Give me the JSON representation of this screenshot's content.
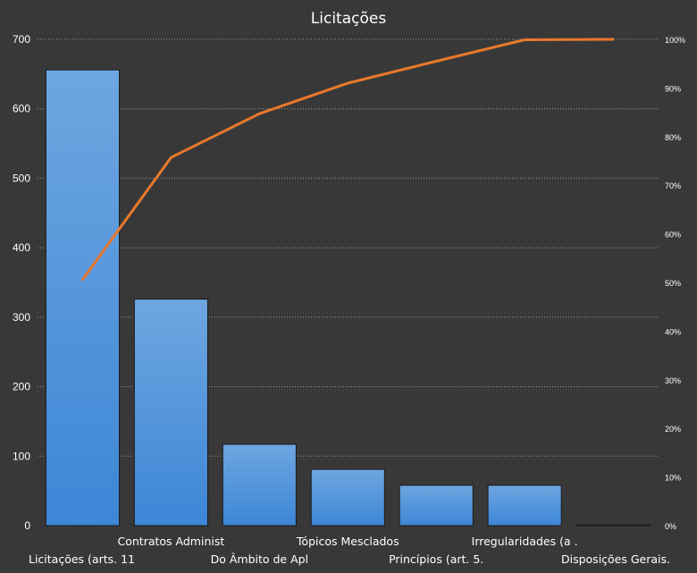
{
  "chart_data": {
    "type": "bar",
    "title": "Licitações",
    "categories": [
      "Licitações (arts. 11",
      "Contratos Administ",
      "Do Âmbito de Apl",
      "Tópicos Mesclados",
      "Princípios (art. 5.",
      "Irregularidades (a .",
      "Disposições Gerais."
    ],
    "series": [
      {
        "type": "bar",
        "values": [
          656,
          326,
          117,
          81,
          58,
          58,
          1
        ]
      },
      {
        "type": "line",
        "axis": "secondary",
        "values": [
          0.506,
          0.757,
          0.847,
          0.91,
          0.955,
          0.999,
          1.0
        ]
      }
    ],
    "ylim": [
      0,
      700
    ],
    "yticks": [
      0,
      100,
      200,
      300,
      400,
      500,
      600,
      700
    ],
    "y2lim": [
      0,
      1
    ],
    "y2ticks": [
      "0%",
      "10%",
      "20%",
      "30%",
      "40%",
      "50%",
      "60%",
      "70%",
      "80%",
      "90%",
      "100%"
    ],
    "grid": true,
    "colors": {
      "bar": "#4f94dc",
      "bar_top": "#6aa3de",
      "line": "#e8782c",
      "background": "#383838"
    }
  }
}
